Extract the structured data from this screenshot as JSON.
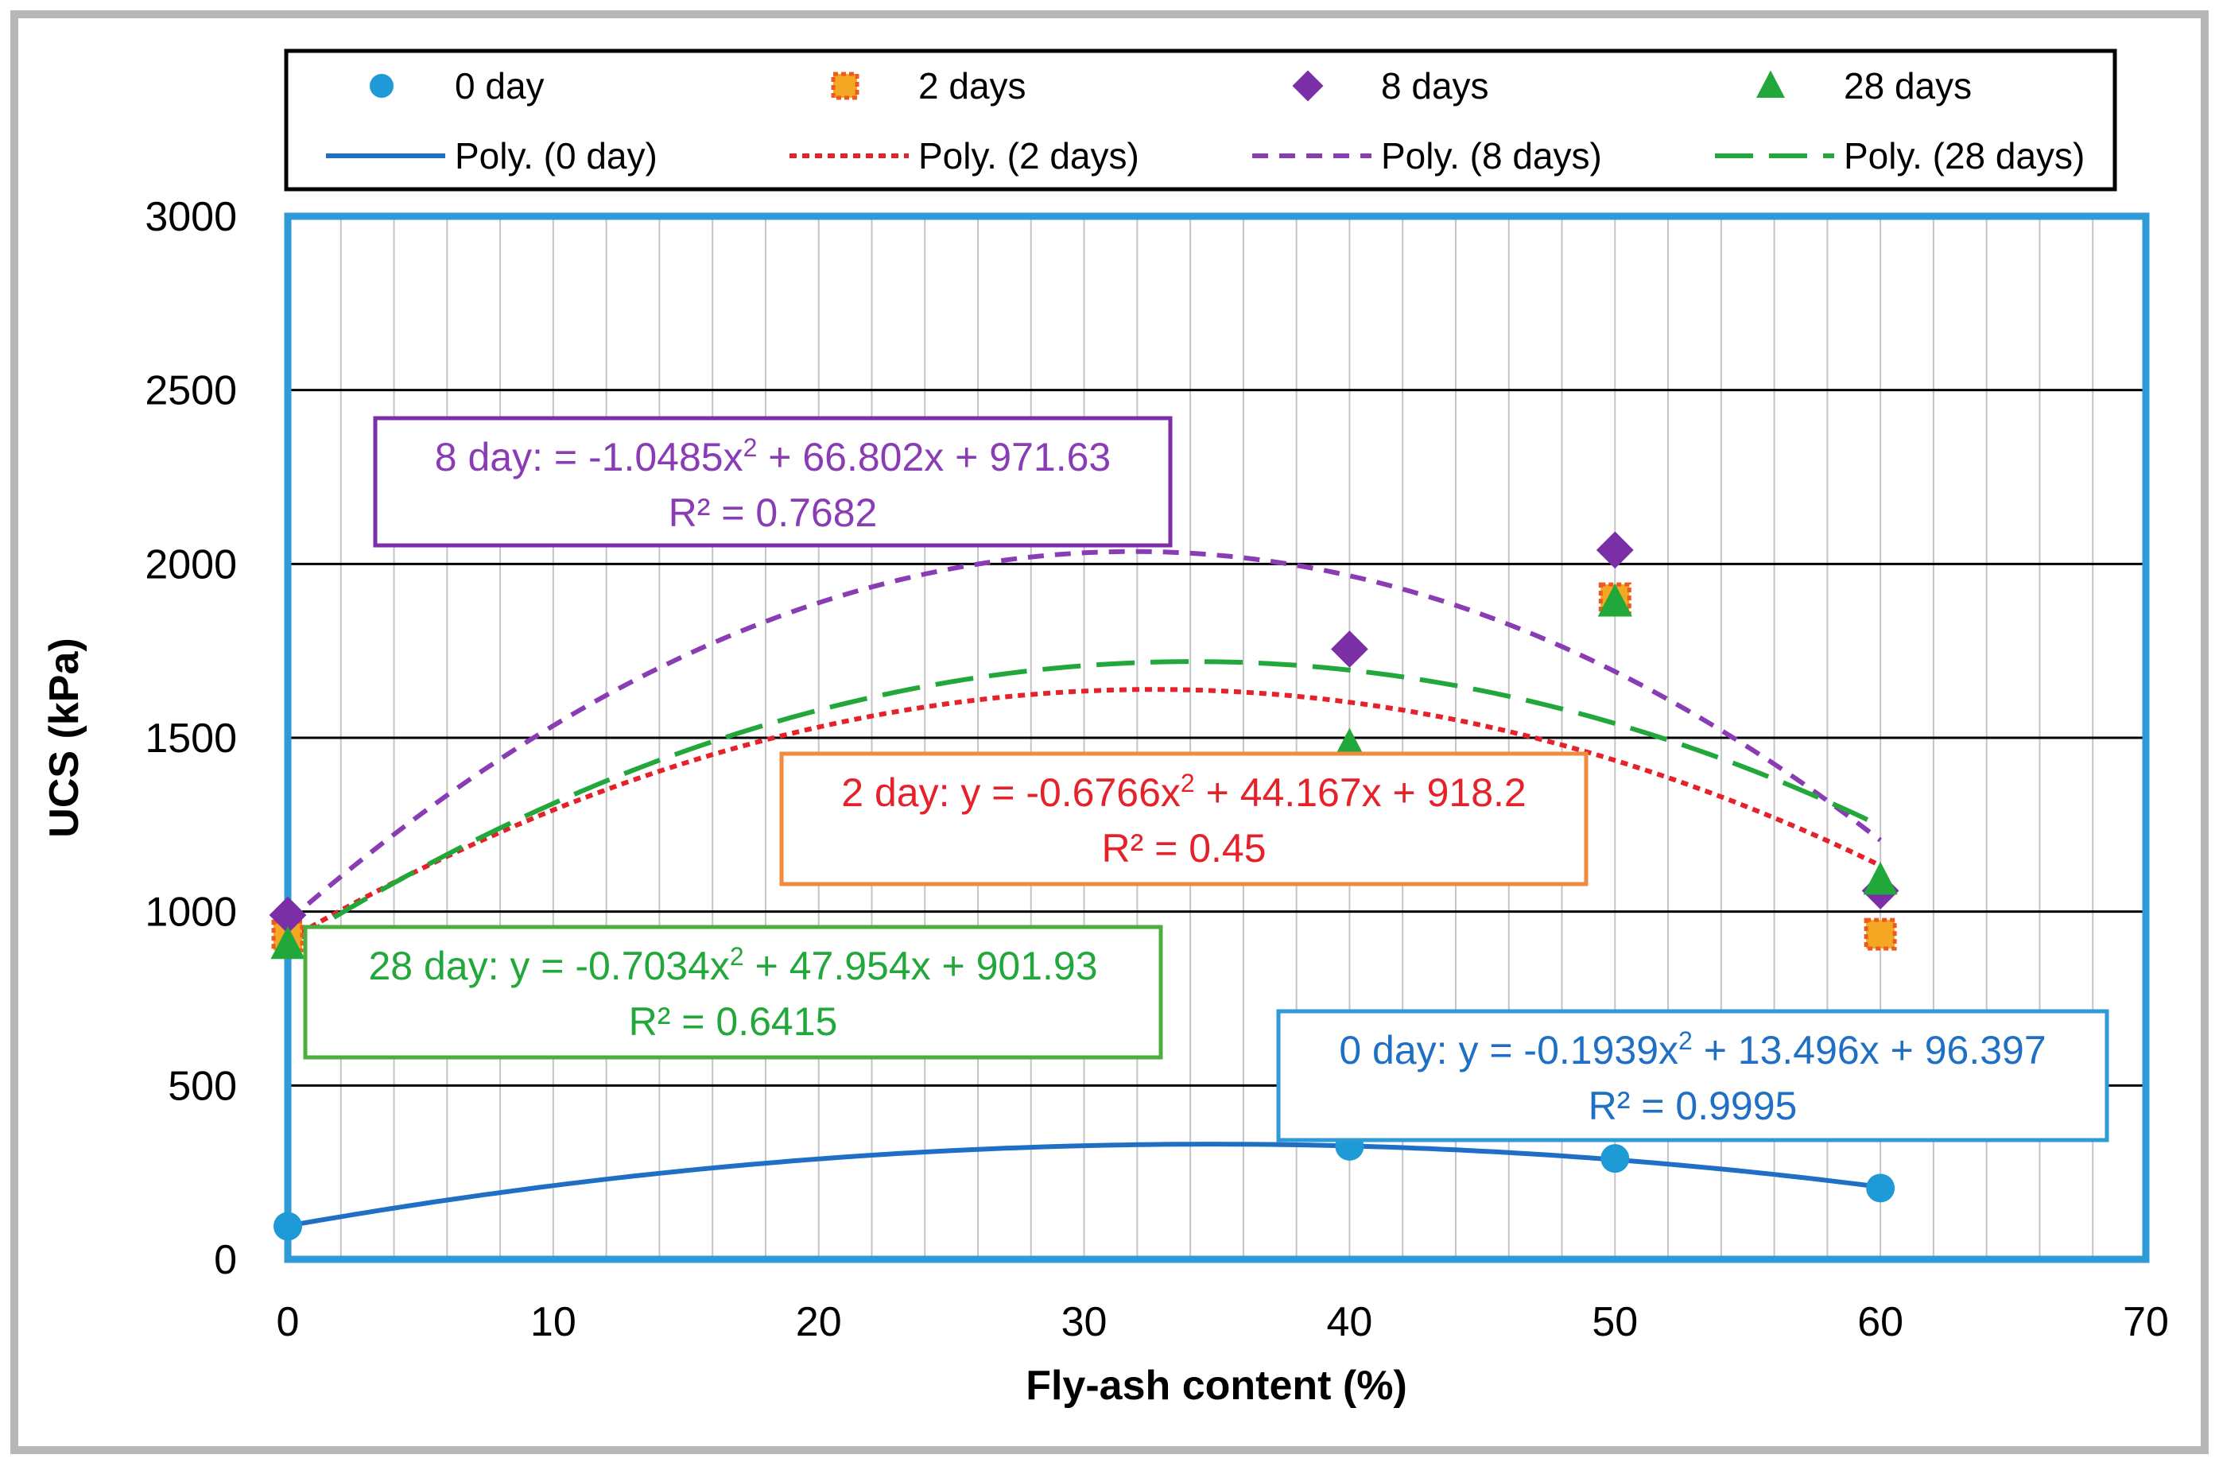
{
  "chart_data": {
    "type": "scatter",
    "title": "",
    "xlabel": "Fly-ash content (%)",
    "ylabel": "UCS (kPa)",
    "xlim": [
      0,
      70
    ],
    "ylim": [
      0,
      3000
    ],
    "x_ticks": [
      0,
      10,
      20,
      30,
      40,
      50,
      60,
      70
    ],
    "y_ticks": [
      0,
      500,
      1000,
      1500,
      2000,
      2500,
      3000
    ],
    "minor_x_step": 2,
    "grid": true,
    "legend_position": "top",
    "series": [
      {
        "name": "0 day",
        "marker": "circle",
        "color": "#1e9bd7",
        "x": [
          0,
          40,
          50,
          60
        ],
        "y": [
          95,
          325,
          290,
          205
        ],
        "trend": {
          "name": "Poly. (0 day)",
          "a": -0.1939,
          "b": 13.496,
          "c": 96.397,
          "color": "#1f6fc5",
          "dash": "solid",
          "x_range": [
            0,
            60
          ]
        },
        "equation": {
          "line1_prefix": "0 day: y = -0.1939x",
          "line1_suffix": " + 13.496x + 96.397",
          "r2": "R² = 0.9995",
          "color": "#1f6fc5",
          "border": "#2e9ad6"
        }
      },
      {
        "name": "2 days",
        "marker": "square",
        "color": "#ed5a1e",
        "x": [
          0,
          50,
          60
        ],
        "y": [
          930,
          1900,
          935
        ],
        "trend": {
          "name": "Poly. (2 days)",
          "a": -0.6766,
          "b": 44.167,
          "c": 918.2,
          "color": "#e5212a",
          "dash": "dotted",
          "x_range": [
            0,
            60
          ]
        },
        "equation": {
          "line1_prefix": "2 day: y = -0.6766x",
          "line1_suffix": " + 44.167x + 918.2",
          "r2": "R² = 0.45",
          "color": "#e5212a",
          "border": "#f08a3c"
        }
      },
      {
        "name": "8 days",
        "marker": "diamond",
        "color": "#7b2fa6",
        "x": [
          0,
          40,
          50,
          60
        ],
        "y": [
          990,
          1755,
          2040,
          1060
        ],
        "trend": {
          "name": "Poly. (8 days)",
          "a": -1.0485,
          "b": 66.802,
          "c": 971.63,
          "color": "#8a3cb5",
          "dash": "dashed",
          "x_range": [
            0,
            60
          ]
        },
        "equation": {
          "line1_prefix": "8 day: = -1.0485x",
          "line1_suffix": " + 66.802x + 971.63",
          "r2": "R² = 0.7682",
          "color": "#8a3cb5",
          "border": "#7b2fa6"
        }
      },
      {
        "name": "28 days",
        "marker": "triangle",
        "color": "#22a83a",
        "x": [
          0,
          40,
          50,
          60
        ],
        "y": [
          905,
          1475,
          1890,
          1090
        ],
        "trend": {
          "name": "Poly. (28 days)",
          "a": -0.7034,
          "b": 47.954,
          "c": 901.93,
          "color": "#22a83a",
          "dash": "longdash",
          "x_range": [
            0,
            60
          ]
        },
        "equation": {
          "line1_prefix": "28 day: y = -0.7034x",
          "line1_suffix": " + 47.954x + 901.93",
          "r2": "R² = 0.6415",
          "color": "#22a83a",
          "border": "#4cae3c"
        }
      }
    ]
  }
}
